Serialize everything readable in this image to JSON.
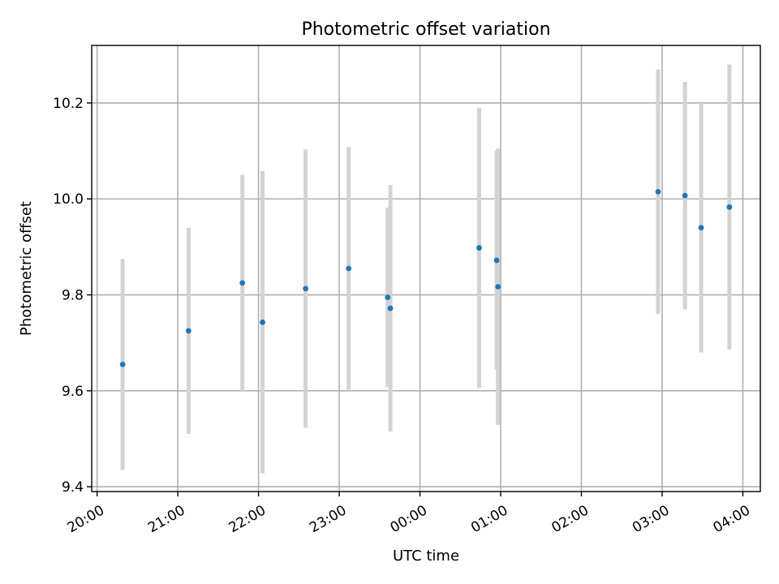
{
  "chart_data": {
    "type": "scatter",
    "title": "Photometric offset variation",
    "xlabel": "UTC time",
    "ylabel": "Photometric offset",
    "x_is_time": true,
    "xlim": [
      "19:56",
      "04:13"
    ],
    "ylim": [
      9.39,
      10.32
    ],
    "x_ticks": [
      "20:00",
      "21:00",
      "22:00",
      "23:00",
      "00:00",
      "01:00",
      "02:00",
      "03:00",
      "04:00"
    ],
    "y_ticks": [
      "9.4",
      "9.6",
      "9.8",
      "10.0",
      "10.2"
    ],
    "grid": true,
    "marker_color": "#1f77b4",
    "errorbar_color": "#d3d3d3",
    "points": [
      {
        "x": "20:19",
        "y": 9.655,
        "yerr": 0.22
      },
      {
        "x": "21:08",
        "y": 9.725,
        "yerr": 0.215
      },
      {
        "x": "21:48",
        "y": 9.825,
        "yerr": 0.225
      },
      {
        "x": "22:03",
        "y": 9.743,
        "yerr": 0.315
      },
      {
        "x": "22:35",
        "y": 9.813,
        "yerr": 0.29
      },
      {
        "x": "23:07",
        "y": 9.855,
        "yerr": 0.253
      },
      {
        "x": "23:36",
        "y": 9.795,
        "yerr": 0.187
      },
      {
        "x": "23:38",
        "y": 9.772,
        "yerr": 0.257
      },
      {
        "x": "00:44",
        "y": 9.898,
        "yerr": 0.292
      },
      {
        "x": "00:57",
        "y": 9.872,
        "yerr": 0.228
      },
      {
        "x": "00:58",
        "y": 9.817,
        "yerr": 0.288
      },
      {
        "x": "02:57",
        "y": 10.015,
        "yerr": 0.255
      },
      {
        "x": "03:17",
        "y": 10.007,
        "yerr": 0.237
      },
      {
        "x": "03:29",
        "y": 9.94,
        "yerr": 0.26
      },
      {
        "x": "03:50",
        "y": 9.983,
        "yerr": 0.297
      }
    ]
  }
}
